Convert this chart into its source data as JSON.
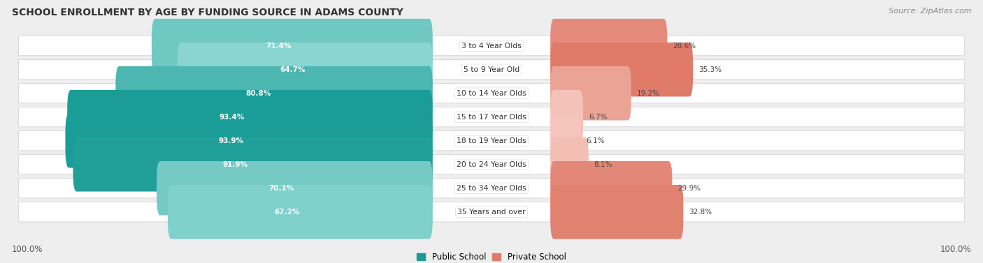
{
  "title": "SCHOOL ENROLLMENT BY AGE BY FUNDING SOURCE IN ADAMS COUNTY",
  "source": "Source: ZipAtlas.com",
  "categories": [
    "3 to 4 Year Olds",
    "5 to 9 Year Old",
    "10 to 14 Year Olds",
    "15 to 17 Year Olds",
    "18 to 19 Year Olds",
    "20 to 24 Year Olds",
    "25 to 34 Year Olds",
    "35 Years and over"
  ],
  "public_values": [
    71.4,
    64.7,
    80.8,
    93.4,
    93.9,
    91.9,
    70.1,
    67.2
  ],
  "private_values": [
    28.6,
    35.3,
    19.2,
    6.7,
    6.1,
    8.1,
    29.9,
    32.8
  ],
  "public_labels": [
    "71.4%",
    "64.7%",
    "80.8%",
    "93.4%",
    "93.9%",
    "91.9%",
    "70.1%",
    "67.2%"
  ],
  "private_labels": [
    "28.6%",
    "35.3%",
    "19.2%",
    "6.7%",
    "6.1%",
    "8.1%",
    "29.9%",
    "32.8%"
  ],
  "public_colors": [
    "#72ceca",
    "#8ad5d1",
    "#4dbdb8",
    "#1f9e98",
    "#1a9d97",
    "#27a39d",
    "#6ecbc6",
    "#7dceca"
  ],
  "private_colors": [
    "#e07b6a",
    "#e5806f",
    "#e8997f",
    "#f2c0b5",
    "#f4c4ba",
    "#f0bdb1",
    "#e07b6b",
    "#e2806f"
  ],
  "bg_color": "#eeeeee",
  "row_bg": "#ffffff",
  "legend_public": "Public School",
  "legend_private": "Private School",
  "left_label": "100.0%",
  "right_label": "100.0%",
  "pub_min": 64.7,
  "pub_max": 93.9,
  "priv_min": 6.1,
  "priv_max": 35.3,
  "public_color_dark": "#1a9d97",
  "public_color_light": "#8ad5d1",
  "private_color_dark": "#e07b6a",
  "private_color_light": "#f5c4bb"
}
